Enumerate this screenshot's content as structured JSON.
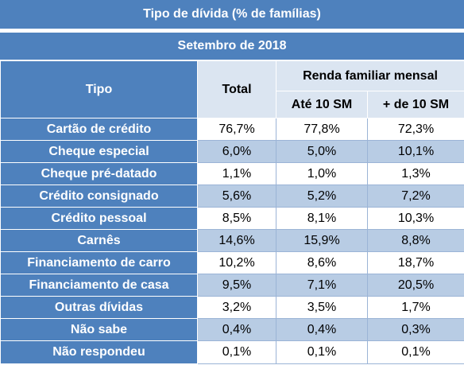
{
  "title": "Tipo de dívida (% de famílias)",
  "subtitle": "Setembro de 2018",
  "headers": {
    "tipo": "Tipo",
    "total": "Total",
    "renda": "Renda familiar mensal",
    "ate10": "Até 10 SM",
    "mais10": "+ de 10 SM"
  },
  "rows": [
    {
      "label": "Cartão de crédito",
      "total": "76,7%",
      "ate10": "77,8%",
      "mais10": "72,3%"
    },
    {
      "label": "Cheque especial",
      "total": "6,0%",
      "ate10": "5,0%",
      "mais10": "10,1%"
    },
    {
      "label": "Cheque pré-datado",
      "total": "1,1%",
      "ate10": "1,0%",
      "mais10": "1,3%"
    },
    {
      "label": "Crédito consignado",
      "total": "5,6%",
      "ate10": "5,2%",
      "mais10": "7,2%"
    },
    {
      "label": "Crédito pessoal",
      "total": "8,5%",
      "ate10": "8,1%",
      "mais10": "10,3%"
    },
    {
      "label": "Carnês",
      "total": "14,6%",
      "ate10": "15,9%",
      "mais10": "8,8%"
    },
    {
      "label": "Financiamento de carro",
      "total": "10,2%",
      "ate10": "8,6%",
      "mais10": "18,7%"
    },
    {
      "label": "Financiamento de casa",
      "total": "9,5%",
      "ate10": "7,1%",
      "mais10": "20,5%"
    },
    {
      "label": "Outras dívidas",
      "total": "3,2%",
      "ate10": "3,5%",
      "mais10": "1,7%"
    },
    {
      "label": "Não sabe",
      "total": "0,4%",
      "ate10": "0,4%",
      "mais10": "0,3%"
    },
    {
      "label": "Não respondeu",
      "total": "0,1%",
      "ate10": "0,1%",
      "mais10": "0,1%"
    }
  ],
  "colors": {
    "header_blue": "#4e81bd",
    "light_blue": "#dbe5f1",
    "band_blue": "#b8cce4"
  }
}
